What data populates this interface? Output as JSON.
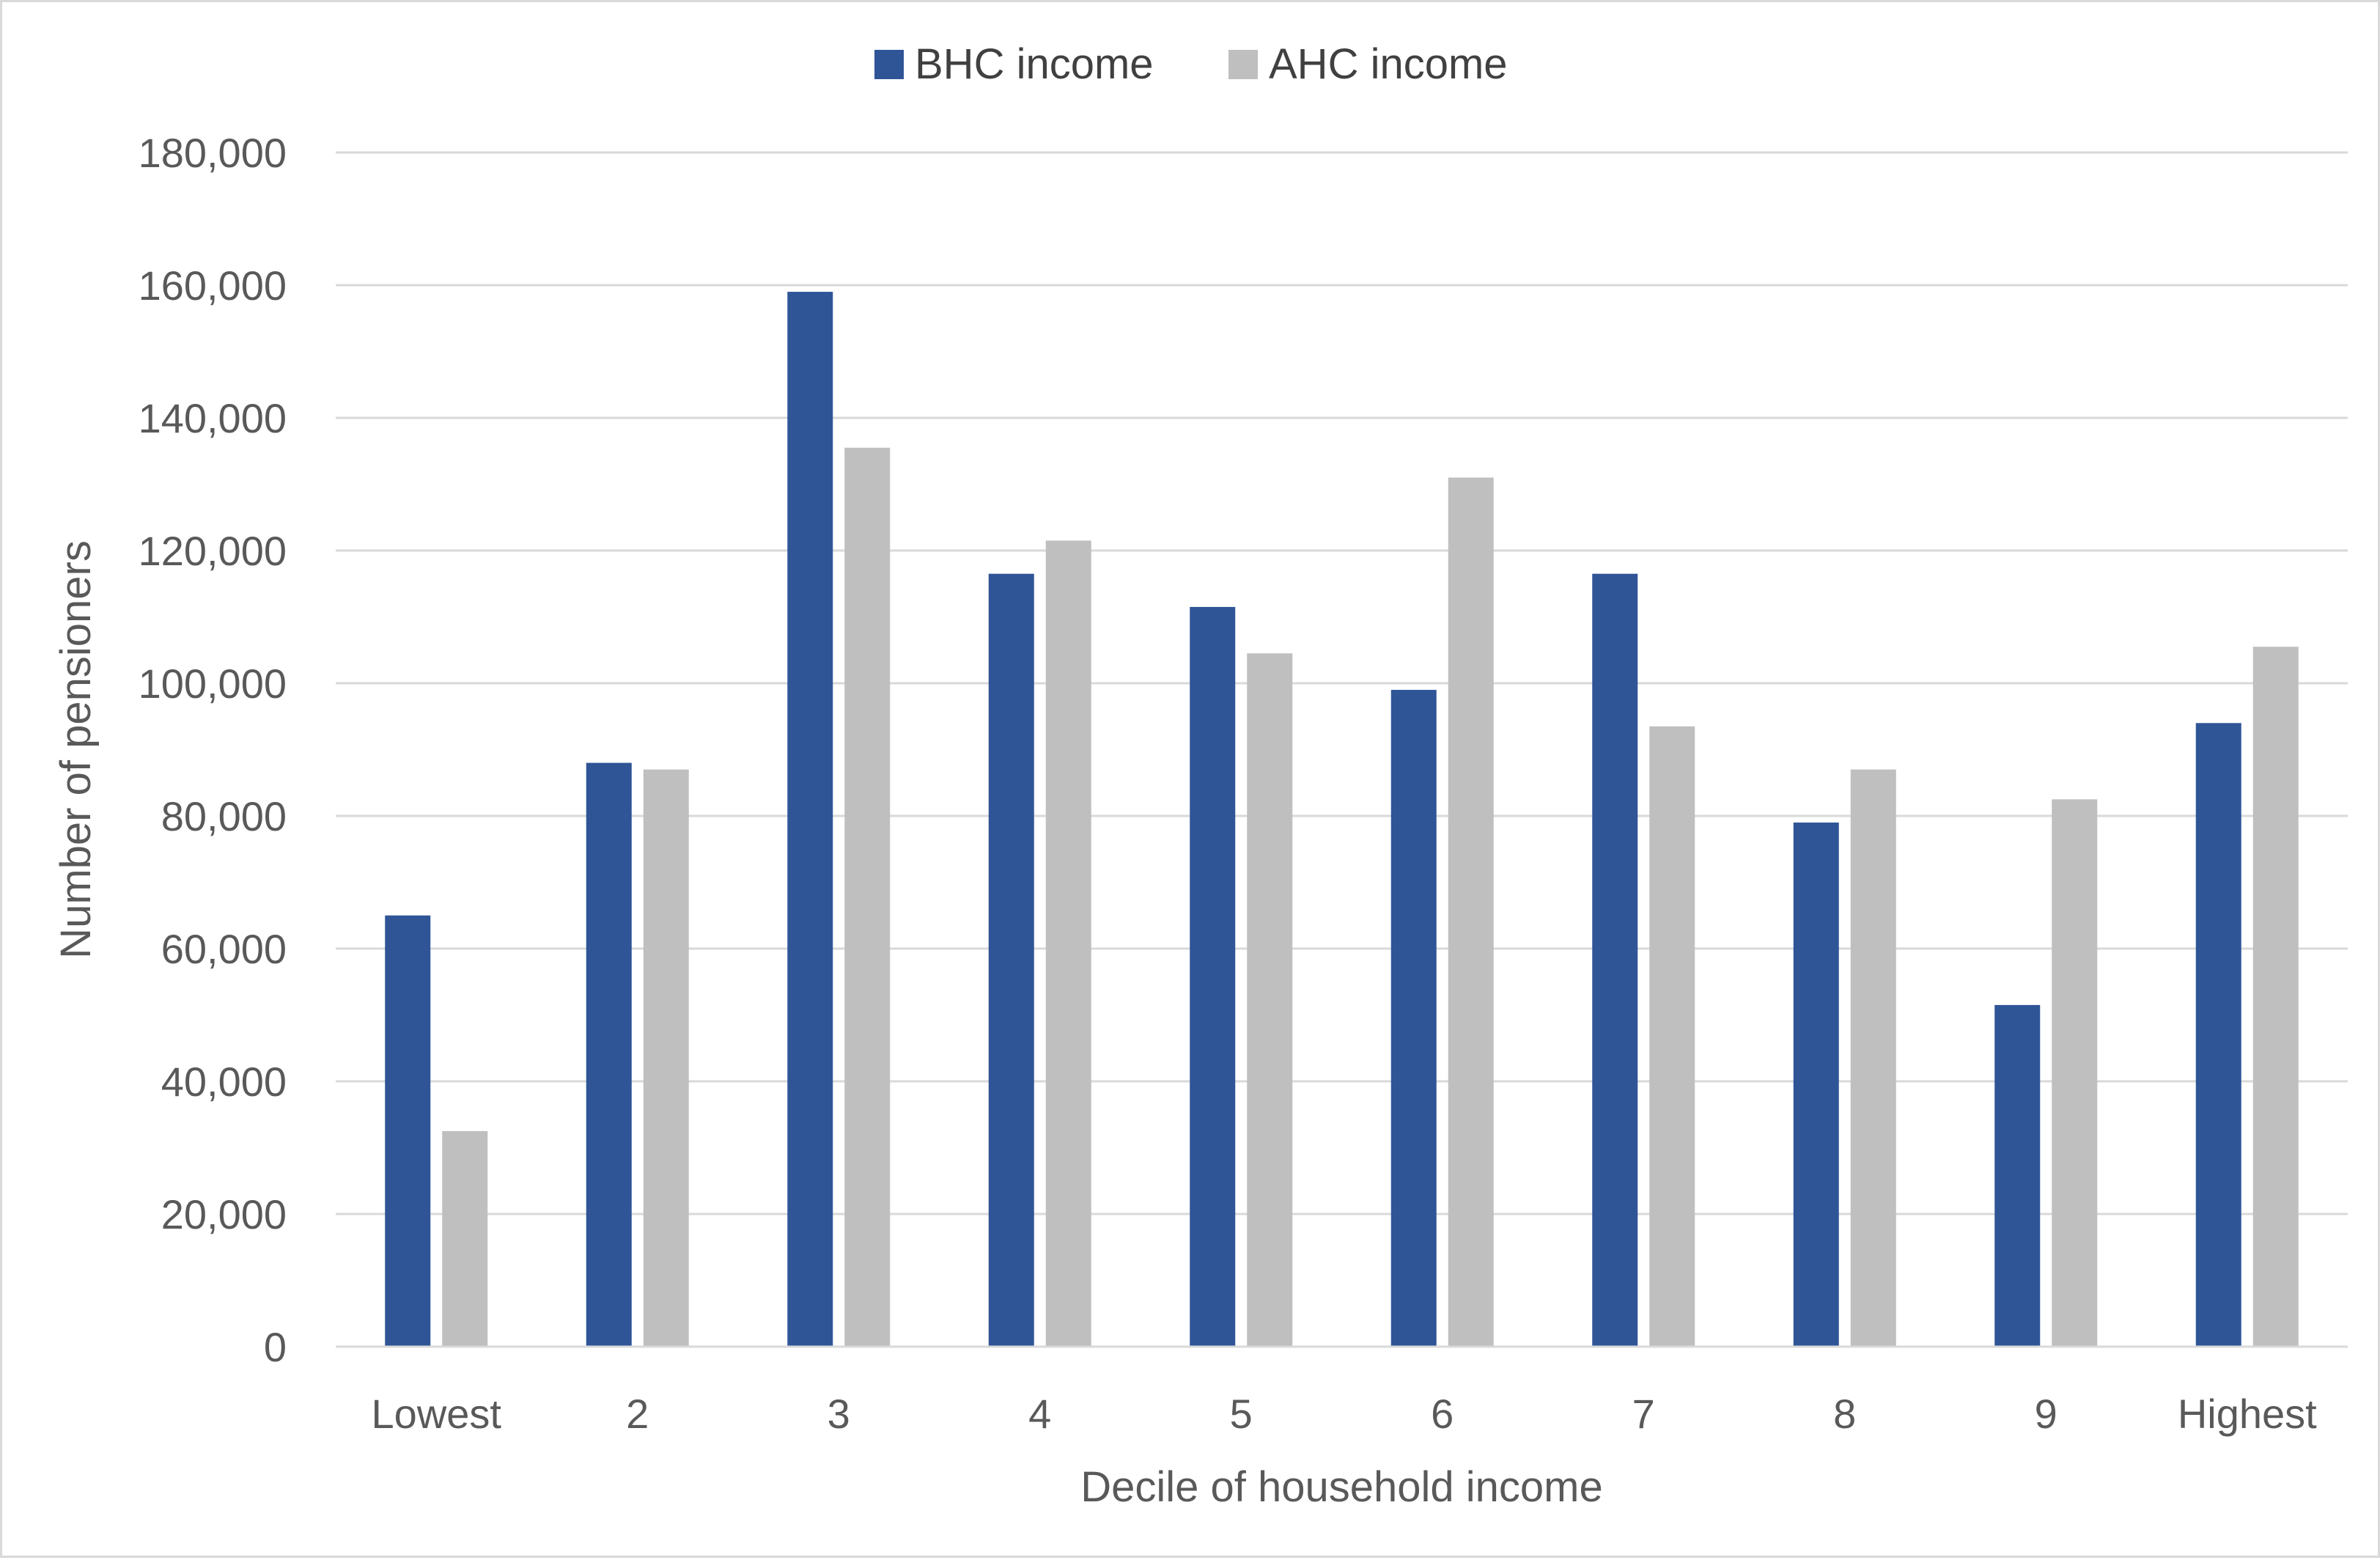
{
  "chart_data": {
    "type": "bar",
    "title": "",
    "xlabel": "Decile of household income",
    "ylabel": "Number of pensioners",
    "ylim": [
      0,
      180000
    ],
    "yticks": [
      0,
      20000,
      40000,
      60000,
      80000,
      100000,
      120000,
      140000,
      160000,
      180000
    ],
    "ytick_labels": [
      "0",
      "20,000",
      "40,000",
      "60,000",
      "80,000",
      "100,000",
      "120,000",
      "140,000",
      "160,000",
      "180,000"
    ],
    "grid": true,
    "legend_position": "top-center",
    "categories": [
      "Lowest",
      "2",
      "3",
      "4",
      "5",
      "6",
      "7",
      "8",
      "9",
      "Highest"
    ],
    "series": [
      {
        "name": "BHC income",
        "color": "#2f5597",
        "values": [
          65000,
          88000,
          159000,
          116500,
          111500,
          99000,
          116500,
          79000,
          51500,
          94000
        ]
      },
      {
        "name": "AHC income",
        "color": "#bfbfbf",
        "values": [
          32500,
          87000,
          135500,
          121500,
          104500,
          131000,
          93500,
          87000,
          82500,
          105500
        ]
      }
    ],
    "gridline_color": "#d9d9d9",
    "axis_color": "#d9d9d9"
  }
}
